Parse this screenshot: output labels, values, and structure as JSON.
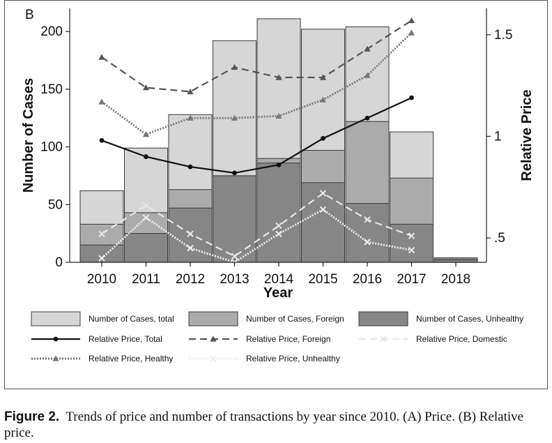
{
  "chart_data": {
    "type": "bar",
    "panel_label": "B",
    "categories": [
      "2010",
      "2011",
      "2012",
      "2013",
      "2014",
      "2015",
      "2016",
      "2017",
      "2018"
    ],
    "xlabel": "Year",
    "ylabel": "Number of Cases",
    "ylabel_right": "Relative Price",
    "ylim": [
      0,
      220
    ],
    "ylim_right": [
      0.38,
      1.63
    ],
    "yticks": [
      0,
      50,
      100,
      150,
      200
    ],
    "yticks_right": [
      0.5,
      1,
      1.5
    ],
    "ytick_labels_right": [
      ".5",
      "1",
      "1.5"
    ],
    "bar_series": [
      {
        "name": "Number of Cases, total",
        "color": "#d6d6d6",
        "values": [
          62,
          99,
          128,
          192,
          211,
          202,
          204,
          113,
          4
        ]
      },
      {
        "name": "Number of Cases, Foreign",
        "color": "#ababab",
        "values": [
          33,
          43,
          63,
          75,
          90,
          97,
          122,
          73,
          3
        ]
      },
      {
        "name": "Number of Cases, Unhealthy",
        "color": "#868686",
        "values": [
          15,
          25,
          47,
          75,
          86,
          69,
          51,
          33,
          2
        ]
      }
    ],
    "line_series": [
      {
        "name": "Relative Price, Total",
        "style": "solid",
        "marker": "dot",
        "color": "#111111",
        "values": [
          0.98,
          0.9,
          0.85,
          0.82,
          0.86,
          0.99,
          1.09,
          1.19,
          null
        ]
      },
      {
        "name": "Relative Price, Foreign",
        "style": "dashed",
        "marker": "triangle",
        "color": "#555555",
        "values": [
          1.39,
          1.24,
          1.22,
          1.34,
          1.29,
          1.29,
          1.43,
          1.57,
          null
        ]
      },
      {
        "name": "Relative Price, Domestic",
        "style": "dashed",
        "marker": "x",
        "color": "#e6e6e6",
        "values": [
          0.52,
          0.66,
          0.52,
          0.41,
          0.56,
          0.72,
          0.59,
          0.51,
          null
        ]
      },
      {
        "name": "Relative Price, Healthy",
        "style": "dotted",
        "marker": "triangle",
        "color": "#777777",
        "values": [
          1.17,
          1.01,
          1.09,
          1.09,
          1.1,
          1.18,
          1.3,
          1.51,
          null
        ]
      },
      {
        "name": "Relative Price, Unhealthy",
        "style": "dotted",
        "marker": "x",
        "color": "#eeeeee",
        "values": [
          0.4,
          0.6,
          0.45,
          0.38,
          0.52,
          0.64,
          0.48,
          0.44,
          null
        ]
      }
    ],
    "legend_position": "bottom"
  },
  "caption": {
    "label": "Figure 2.",
    "text": "Trends of price and number of transactions by year since 2010. (A) Price. (B) Relative price."
  }
}
